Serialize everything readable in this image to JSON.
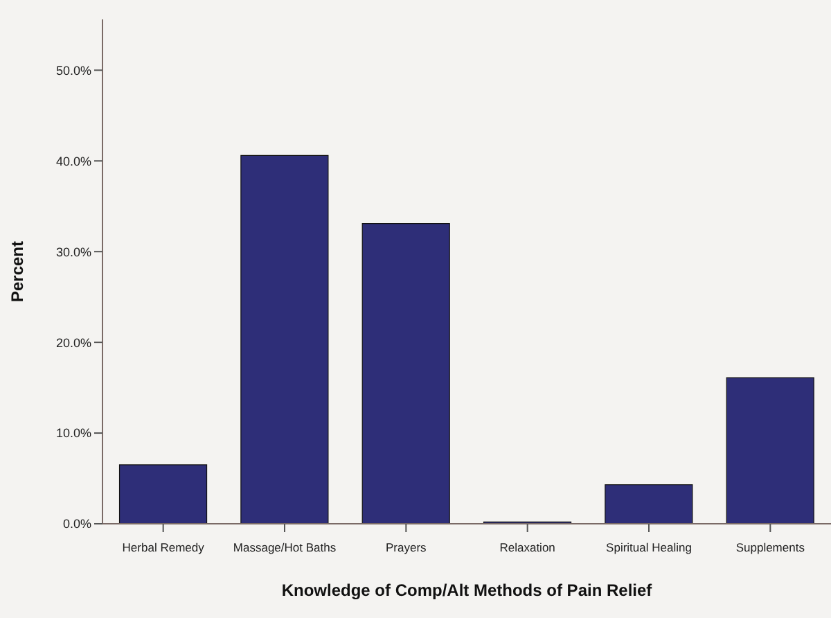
{
  "chart_data": {
    "type": "bar",
    "xlabel": "Knowledge of Comp/Alt Methods of Pain Relief",
    "ylabel": "Percent",
    "categories": [
      "Herbal Remedy",
      "Massage/Hot Baths",
      "Prayers",
      "Relaxation",
      "Spiritual Healing",
      "Supplements"
    ],
    "values": [
      6.5,
      40.6,
      33.1,
      0.2,
      4.3,
      16.1
    ],
    "color": "#2e2e78",
    "ylim": [
      0,
      55.6
    ],
    "yticks": [
      {
        "value": 0,
        "label": "0.0%"
      },
      {
        "value": 10,
        "label": "10.0%"
      },
      {
        "value": 20,
        "label": "20.0%"
      },
      {
        "value": 30,
        "label": "30.0%"
      },
      {
        "value": 40,
        "label": "40.0%"
      },
      {
        "value": 50,
        "label": "50.0%"
      }
    ]
  }
}
